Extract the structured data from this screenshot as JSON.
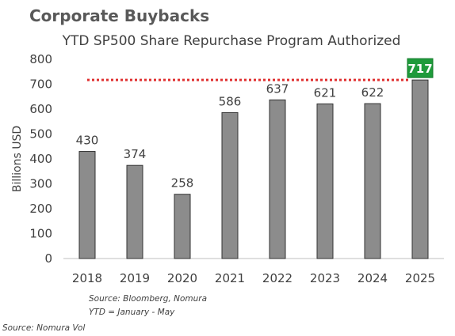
{
  "heading": "Corporate Buybacks",
  "chart_data": {
    "type": "bar",
    "title": "YTD SP500 Share Repurchase Program Authorized",
    "xlabel": "",
    "ylabel": "Billions USD",
    "ylim": [
      0,
      800
    ],
    "yticks": [
      0,
      100,
      200,
      300,
      400,
      500,
      600,
      700,
      800
    ],
    "categories": [
      "2018",
      "2019",
      "2020",
      "2021",
      "2022",
      "2023",
      "2024",
      "2025"
    ],
    "values": [
      430,
      374,
      258,
      586,
      637,
      621,
      622,
      717
    ],
    "data_labels": [
      "430",
      "374",
      "258",
      "586",
      "637",
      "621",
      "622",
      "717"
    ],
    "highlight_index": 7,
    "reference_line": {
      "value": 717,
      "style": "dotted",
      "color": "#e03030"
    },
    "grid": false,
    "legend": "none",
    "colors": {
      "bar": "#8c8c8c",
      "bar_edge": "#333333",
      "highlight_label_bg": "#1f9b3b",
      "highlight_label_text": "#ffffff",
      "text": "#404040"
    }
  },
  "notes": {
    "source_chart": "Source: Bloomberg, Nomura",
    "ytd_def": "YTD = January - May",
    "source_page": "Source: Nomura Vol"
  }
}
